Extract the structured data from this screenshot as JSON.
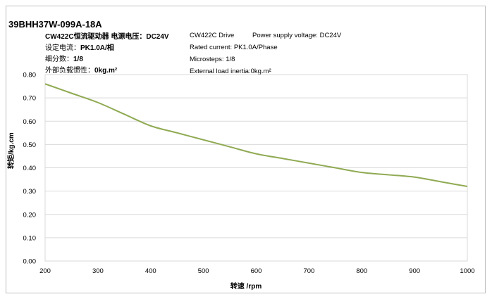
{
  "header": {
    "model": "39BHH37W-099A-18A",
    "cn_line1": "CW422C恒流驱动器   电源电压：DC24V",
    "cn_line2_label": "设定电流：",
    "cn_line2_value": "PK1.0A/相",
    "cn_line3_label": "细分数：",
    "cn_line3_value": "1/8",
    "cn_line4_label": "外部负载惯性：",
    "cn_line4_value": "0kg.m²",
    "en_driver": "CW422C Drive",
    "en_voltage": "Power supply voltage: DC24V",
    "en_current": "Rated current: PK1.0A/Phase",
    "en_microsteps": "Microsteps: 1/8",
    "en_inertia": "External load inertia:0kg.m²"
  },
  "chart_data": {
    "type": "line",
    "xlabel": "转速 /rpm",
    "ylabel": "转矩/kg.cm",
    "xlim": [
      200,
      1000
    ],
    "ylim": [
      0,
      0.8
    ],
    "xticks": [
      "200",
      "300",
      "400",
      "500",
      "600",
      "700",
      "800",
      "900",
      "1000"
    ],
    "yticks": [
      "0.00",
      "0.10",
      "0.20",
      "0.30",
      "0.40",
      "0.50",
      "0.60",
      "0.70",
      "0.80"
    ],
    "grid": "horizontal",
    "series_color": "#8faa52",
    "x": [
      200,
      250,
      300,
      350,
      400,
      450,
      500,
      550,
      600,
      650,
      700,
      750,
      800,
      850,
      900,
      950,
      1000
    ],
    "series": [
      {
        "values": [
          0.76,
          0.72,
          0.68,
          0.63,
          0.58,
          0.55,
          0.52,
          0.49,
          0.46,
          0.44,
          0.42,
          0.4,
          0.38,
          0.37,
          0.36,
          0.34,
          0.32
        ]
      }
    ]
  }
}
